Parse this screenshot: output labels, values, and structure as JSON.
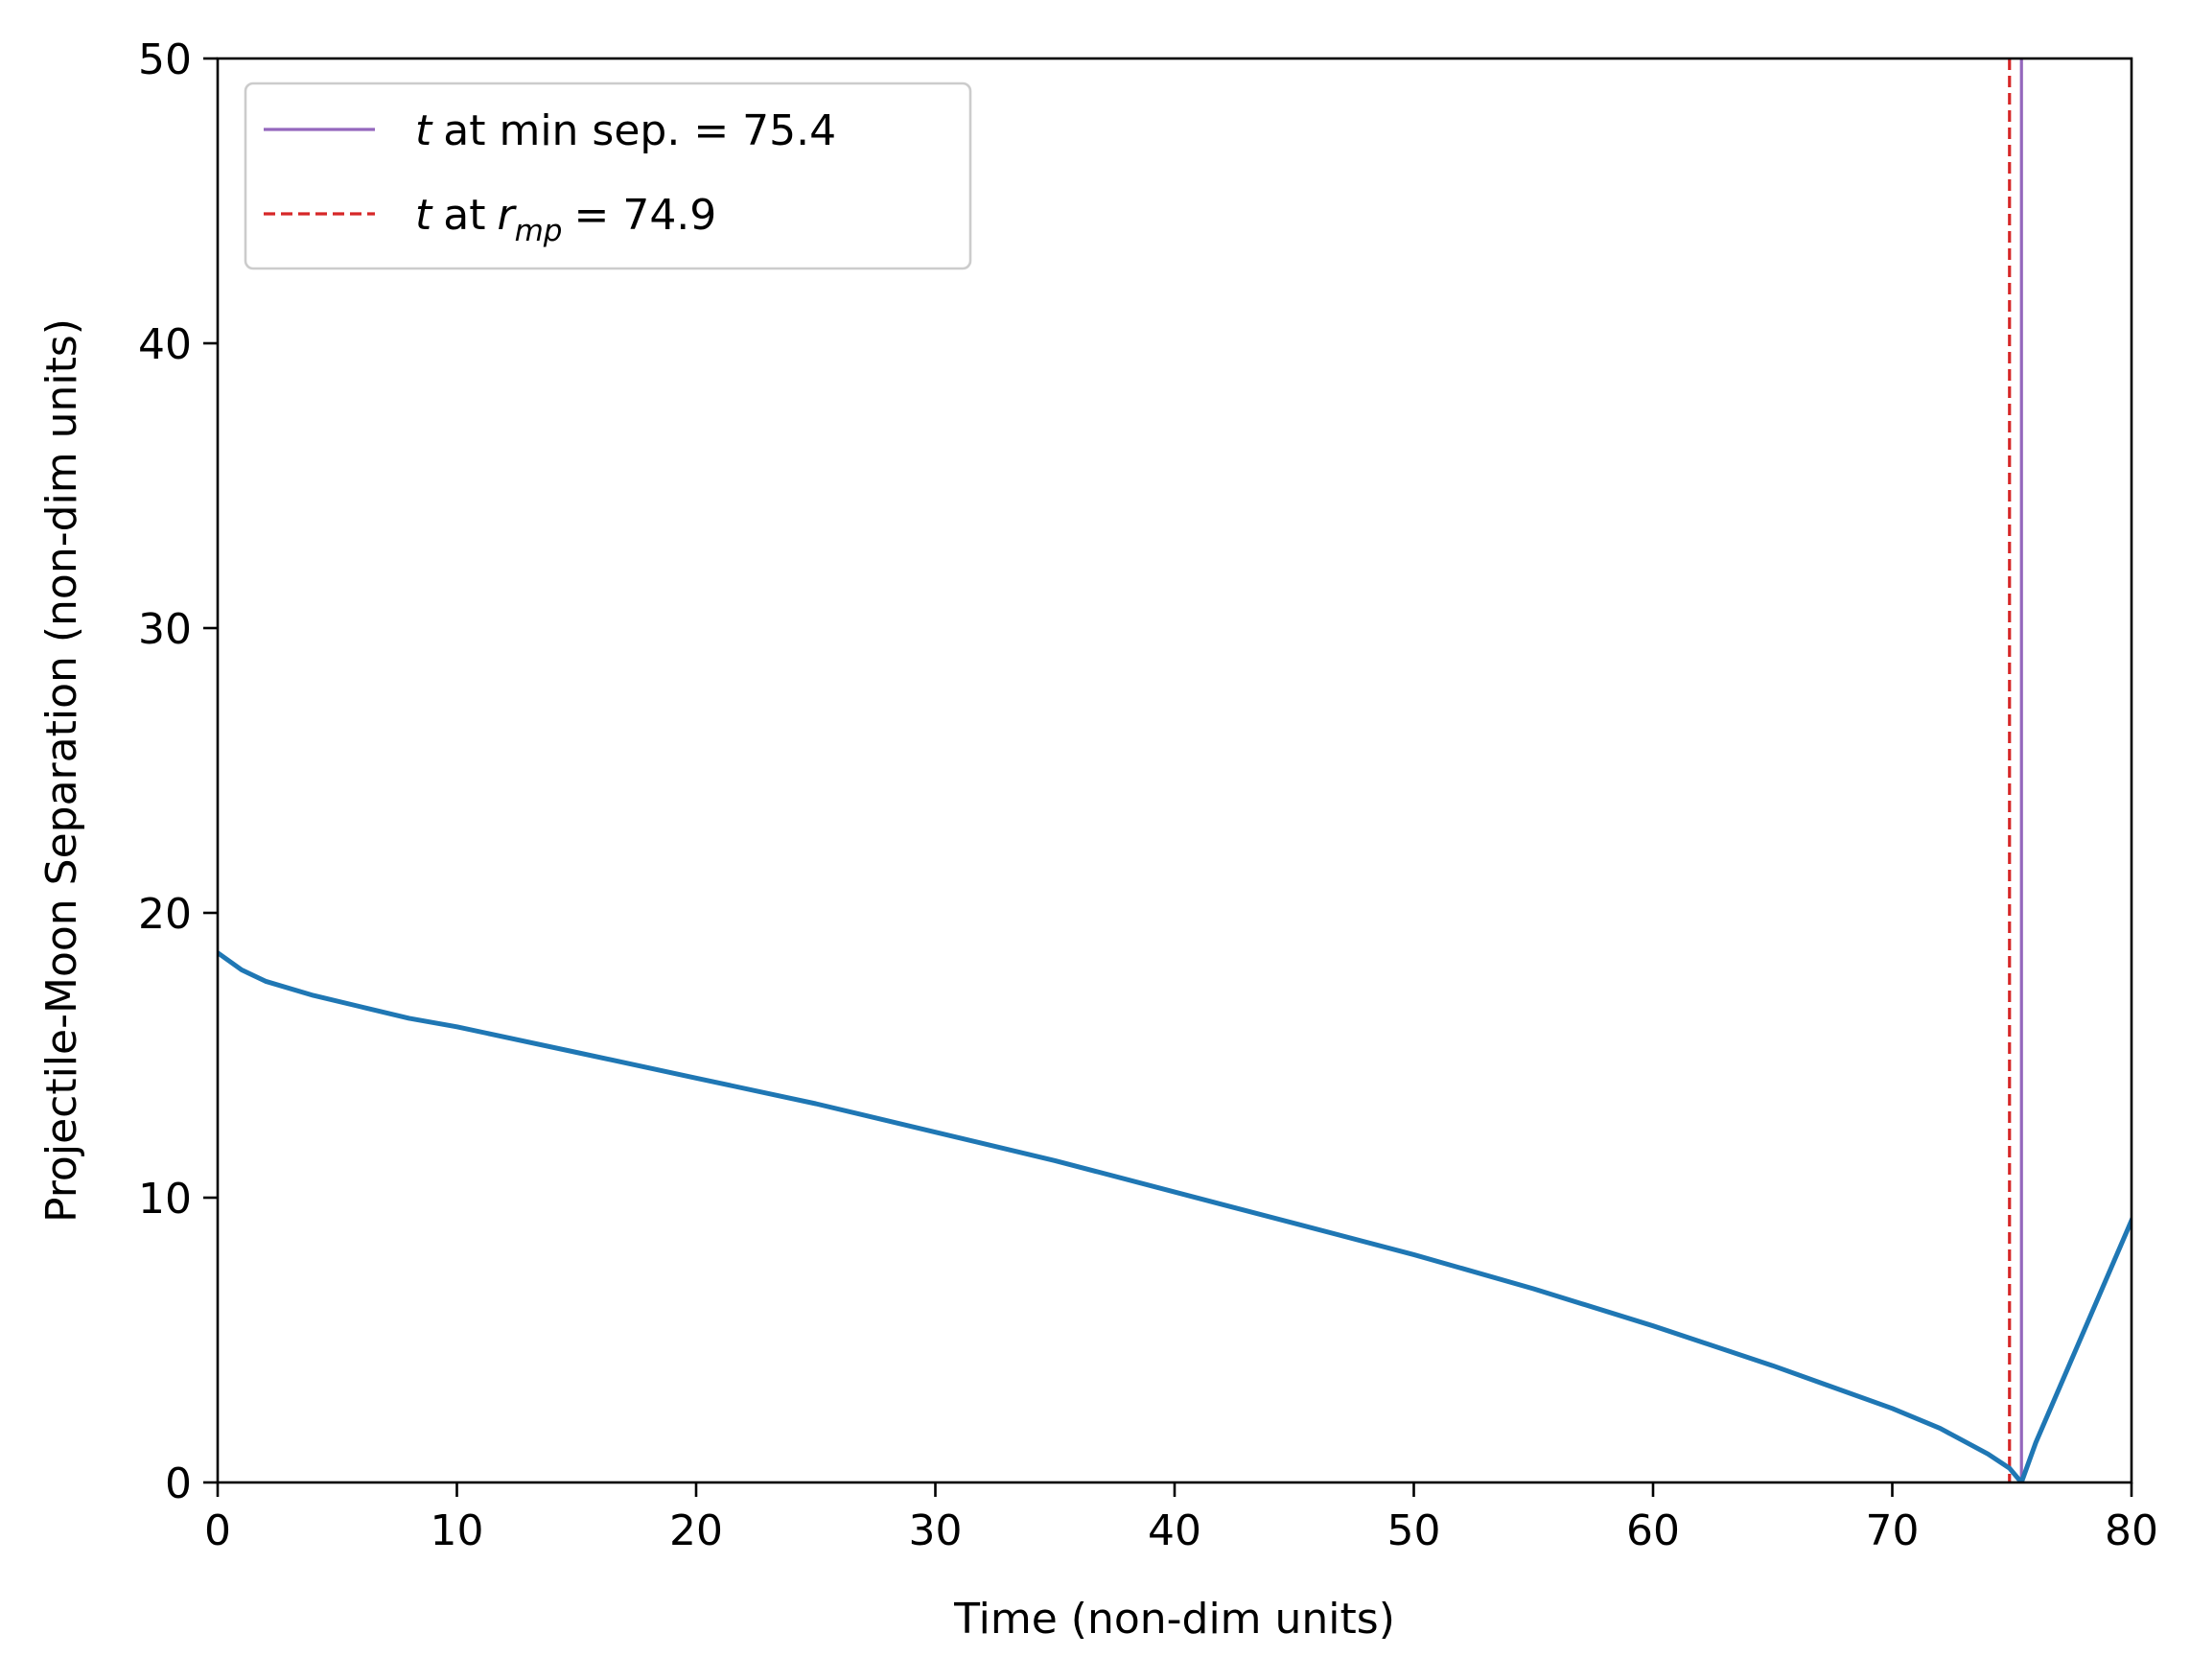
{
  "chart_data": {
    "type": "line",
    "xlabel": "Time (non-dim units)",
    "ylabel": "Projectile-Moon Separation (non-dim units)",
    "xlim": [
      0,
      80
    ],
    "ylim": [
      0,
      50
    ],
    "xticks": [
      0,
      10,
      20,
      30,
      40,
      50,
      60,
      70,
      80
    ],
    "yticks": [
      0,
      10,
      20,
      30,
      40,
      50
    ],
    "grid": false,
    "legend_position": "upper-left",
    "series": [
      {
        "color": "#1f77b4",
        "x": [
          0,
          1,
          2,
          4,
          6,
          8,
          10,
          15,
          20,
          25,
          30,
          35,
          40,
          45,
          50,
          55,
          60,
          65,
          70,
          72,
          74,
          74.9,
          75.4,
          76,
          78,
          80
        ],
        "y": [
          18.6,
          18.0,
          17.6,
          17.1,
          16.7,
          16.3,
          16.0,
          15.1,
          14.2,
          13.3,
          12.3,
          11.3,
          10.2,
          9.1,
          8.0,
          6.8,
          5.5,
          4.1,
          2.6,
          1.9,
          1.0,
          0.5,
          0.0,
          1.4,
          5.3,
          9.2
        ]
      }
    ],
    "vlines": [
      {
        "label_var": "t",
        "label_text": "at min sep. = 75.4",
        "x": 75.4,
        "color": "#9467bd",
        "style": "solid"
      },
      {
        "label_var": "t",
        "label_text": "at",
        "label_sub_base": "r",
        "label_sub": "mp",
        "label_tail": "= 74.9",
        "x": 74.9,
        "color": "#d62728",
        "style": "dashed"
      }
    ]
  }
}
